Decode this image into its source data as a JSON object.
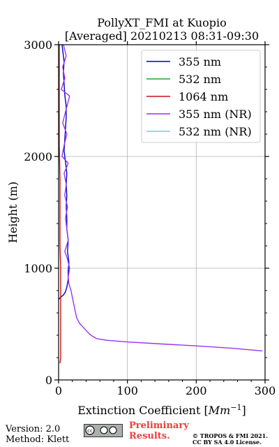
{
  "chart_data": {
    "type": "line",
    "title": "PollyXT_FMI at Kuopio",
    "subtitle": "[Averaged] 20210213 08:31-09:30",
    "xlabel": "Extinction Coefficient [Mm^-1]",
    "ylabel": "Height (m)",
    "xlim": [
      0,
      300
    ],
    "ylim": [
      0,
      3000
    ],
    "x_ticks": [
      0,
      100,
      200,
      300
    ],
    "y_ticks": [
      0,
      1000,
      2000,
      3000
    ],
    "grid": true,
    "legend_position": "top-right",
    "series": [
      {
        "name": "355 nm",
        "color": "#0000cc",
        "points": [
          [
            0,
            720
          ],
          [
            3,
            740
          ],
          [
            7,
            760
          ],
          [
            10,
            790
          ],
          [
            12,
            830
          ],
          [
            14,
            900
          ],
          [
            14,
            980
          ],
          [
            15,
            1050
          ],
          [
            13,
            1150
          ],
          [
            14,
            1250
          ],
          [
            12,
            1350
          ],
          [
            12,
            1450
          ],
          [
            11,
            1550
          ],
          [
            12,
            1650
          ],
          [
            11,
            1750
          ],
          [
            12,
            1850
          ],
          [
            10,
            1950
          ],
          [
            8,
            2050
          ],
          [
            9,
            2150
          ],
          [
            10,
            2250
          ],
          [
            11,
            2350
          ],
          [
            11,
            2450
          ],
          [
            9,
            2550
          ],
          [
            8,
            2650
          ],
          [
            7,
            2750
          ],
          [
            8,
            2850
          ],
          [
            6,
            2950
          ],
          [
            5,
            3000
          ]
        ]
      },
      {
        "name": "532 nm",
        "color": "#22aa22",
        "points": []
      },
      {
        "name": "1064 nm",
        "color": "#cc1111",
        "points": [
          [
            2,
            150
          ],
          [
            3,
            200
          ],
          [
            3,
            300
          ],
          [
            3,
            400
          ],
          [
            3,
            500
          ],
          [
            3,
            600
          ],
          [
            3,
            800
          ],
          [
            3,
            1000
          ],
          [
            2,
            1200
          ],
          [
            2,
            1500
          ],
          [
            2,
            1800
          ],
          [
            1,
            2100
          ],
          [
            1,
            2400
          ],
          [
            1,
            2700
          ],
          [
            1,
            3000
          ]
        ]
      },
      {
        "name": "355 nm (NR)",
        "color": "#9933ee",
        "points": [
          [
            296,
            260
          ],
          [
            250,
            285
          ],
          [
            200,
            305
          ],
          [
            150,
            322
          ],
          [
            100,
            340
          ],
          [
            70,
            355
          ],
          [
            55,
            370
          ],
          [
            47,
            400
          ],
          [
            42,
            430
          ],
          [
            36,
            470
          ],
          [
            30,
            510
          ],
          [
            26,
            560
          ],
          [
            24,
            620
          ],
          [
            22,
            680
          ],
          [
            20,
            740
          ],
          [
            18,
            800
          ],
          [
            15,
            860
          ],
          [
            14,
            920
          ],
          [
            16,
            1000
          ],
          [
            13,
            1080
          ],
          [
            9,
            1150
          ],
          [
            14,
            1250
          ],
          [
            12,
            1350
          ],
          [
            10,
            1450
          ],
          [
            13,
            1550
          ],
          [
            9,
            1650
          ],
          [
            11,
            1750
          ],
          [
            8,
            1850
          ],
          [
            14,
            1940
          ],
          [
            5,
            2000
          ],
          [
            8,
            2100
          ],
          [
            12,
            2200
          ],
          [
            6,
            2300
          ],
          [
            10,
            2400
          ],
          [
            16,
            2540
          ],
          [
            4,
            2600
          ],
          [
            9,
            2700
          ],
          [
            6,
            2800
          ],
          [
            11,
            2900
          ],
          [
            7,
            3000
          ]
        ]
      },
      {
        "name": "532 nm (NR)",
        "color": "#55ddcc",
        "points": []
      }
    ]
  },
  "footer": {
    "version": "Version: 2.0",
    "method": "Method: Klett",
    "preliminary_line1": "Preliminary",
    "preliminary_line2": "Results.",
    "copyright_line1": "© TROPOS & FMI 2021.",
    "copyright_line2": "CC BY SA 4.0 License.",
    "cc_badge_text": "cc by sa"
  }
}
